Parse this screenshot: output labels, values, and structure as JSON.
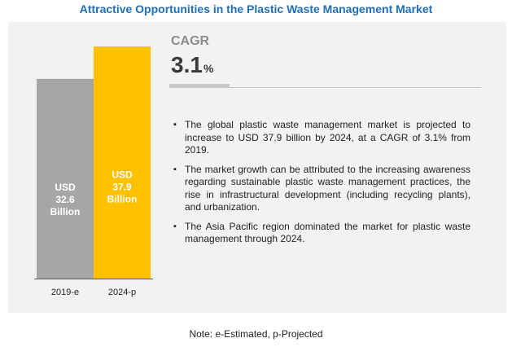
{
  "title": "Attractive Opportunities in the Plastic Waste Management Market",
  "chart_data": {
    "type": "bar",
    "categories": [
      "2019-e",
      "2024-p"
    ],
    "values": [
      32.6,
      37.9
    ],
    "data_labels": [
      [
        "USD",
        "32.6",
        "Billion"
      ],
      [
        "USD",
        "37.9",
        "Billion"
      ]
    ],
    "unit": "USD Billion",
    "colors": [
      "#a6a6a6",
      "#ffc000"
    ],
    "grid": false,
    "legend": "none"
  },
  "cagr": {
    "label": "CAGR",
    "value": "3.1",
    "unit": "%"
  },
  "bullets": [
    "The global plastic waste management market is projected to increase to USD 37.9 billion by 2024, at a CAGR of 3.1% from 2019.",
    "The market growth can be attributed to the increasing awareness regarding sustainable plastic waste management practices, the rise in infrastructural development (including recycling plants), and urbanization.",
    "The Asia Pacific region dominated the market for plastic waste management through 2024."
  ],
  "note": "Note: e-Estimated, p-Projected"
}
